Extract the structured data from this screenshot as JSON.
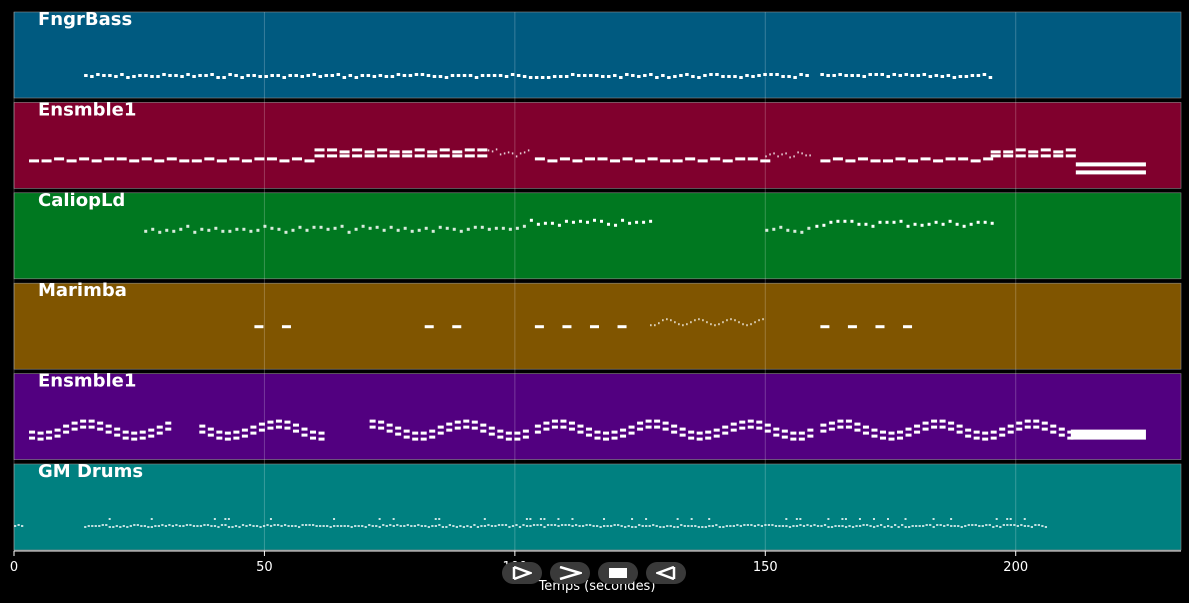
{
  "chart_data": {
    "type": "piano-roll",
    "xlabel": "Temps (secondes)",
    "xlim": [
      0,
      233
    ],
    "xticks": [
      0,
      50,
      100,
      150,
      200
    ],
    "grid": true,
    "tracks": [
      {
        "name": "FngrBass",
        "color": "#005a80",
        "segments": [
          {
            "start": 14,
            "end": 103,
            "pattern": "bass"
          },
          {
            "start": 104,
            "end": 159,
            "pattern": "bass"
          },
          {
            "start": 161,
            "end": 195,
            "pattern": "bass"
          }
        ]
      },
      {
        "name": "Ensmble1",
        "color": "#80002d",
        "segments": [
          {
            "start": 3,
            "end": 60,
            "pattern": "pad"
          },
          {
            "start": 60,
            "end": 93,
            "pattern": "pad2"
          },
          {
            "start": 93,
            "end": 103,
            "pattern": "fill"
          },
          {
            "start": 104,
            "end": 150,
            "pattern": "pad"
          },
          {
            "start": 150,
            "end": 159,
            "pattern": "fill"
          },
          {
            "start": 161,
            "end": 195,
            "pattern": "pad"
          },
          {
            "start": 195,
            "end": 212,
            "pattern": "pad2"
          },
          {
            "start": 212,
            "end": 226,
            "pattern": "hold"
          }
        ]
      },
      {
        "name": "CaliopLd",
        "color": "#007820",
        "segments": [
          {
            "start": 26,
            "end": 102,
            "pattern": "lead"
          },
          {
            "start": 103,
            "end": 127,
            "pattern": "lead2"
          },
          {
            "start": 150,
            "end": 159,
            "pattern": "lead"
          },
          {
            "start": 160,
            "end": 196,
            "pattern": "lead2"
          }
        ]
      },
      {
        "name": "Marimba",
        "color": "#805500",
        "segments": [
          {
            "start": 48,
            "end": 56,
            "pattern": "dots"
          },
          {
            "start": 82,
            "end": 90,
            "pattern": "dots"
          },
          {
            "start": 104,
            "end": 124,
            "pattern": "dots"
          },
          {
            "start": 127,
            "end": 150,
            "pattern": "run"
          },
          {
            "start": 161,
            "end": 181,
            "pattern": "dots"
          }
        ]
      },
      {
        "name": "Ensmble1",
        "color": "#520080",
        "segments": [
          {
            "start": 3,
            "end": 31,
            "pattern": "chords"
          },
          {
            "start": 37,
            "end": 62,
            "pattern": "chords"
          },
          {
            "start": 71,
            "end": 103,
            "pattern": "chords"
          },
          {
            "start": 104,
            "end": 159,
            "pattern": "chords"
          },
          {
            "start": 161,
            "end": 211,
            "pattern": "chords"
          },
          {
            "start": 211,
            "end": 226,
            "pattern": "block"
          }
        ]
      },
      {
        "name": "GM Drums",
        "color": "#008080",
        "segments": [
          {
            "start": 0,
            "end": 2,
            "pattern": "drums-lite"
          },
          {
            "start": 14,
            "end": 206,
            "pattern": "drums"
          }
        ]
      }
    ]
  },
  "controls": [
    {
      "name": "play-forward-icon"
    },
    {
      "name": "fast-forward-icon"
    },
    {
      "name": "stop-icon"
    },
    {
      "name": "play-reverse-icon"
    }
  ]
}
